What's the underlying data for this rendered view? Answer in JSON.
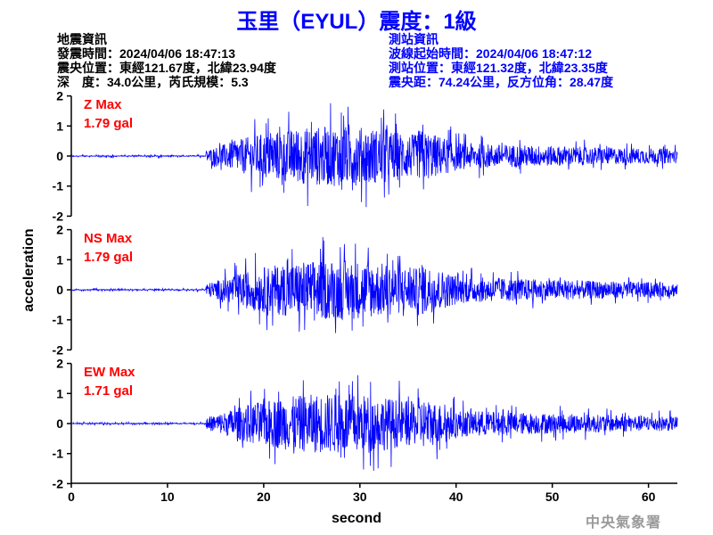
{
  "title": "玉里（EYUL）震度：1級",
  "earthquake_info": {
    "heading": "地震資訊",
    "origin_time": "發震時間：2024/04/06 18:47:13",
    "epicenter": "震央位置：東經121.67度，北緯23.94度",
    "depth_magnitude": "深　度：34.0公里，芮氏規模：5.3"
  },
  "station_info": {
    "heading": "測站資訊",
    "start_time": "波線起始時間：2024/04/06 18:47:12",
    "location": "測站位置：東經121.32度，北緯23.35度",
    "distance": "震央距：74.24公里，反方位角：28.47度"
  },
  "agency": "中央氣象署",
  "colors": {
    "trace": "#0000ff",
    "max_label": "#ff0000",
    "title": "#0000ff",
    "station_info": "#0000ff",
    "agency": "#9a9a9a"
  },
  "chart_data": {
    "type": "line",
    "xlabel": "second",
    "ylabel": "acceleration",
    "xlim": [
      0,
      63
    ],
    "ylim": [
      -2,
      2
    ],
    "x_ticks": [
      "0",
      "10",
      "20",
      "30",
      "40",
      "50",
      "60"
    ],
    "y_ticks": [
      "2",
      "1",
      "0",
      "-1",
      "-2"
    ],
    "grid": false,
    "p_arrival_s": 14,
    "panels": [
      {
        "component": "Z",
        "label": "Z Max",
        "max_text": "1.79 gal",
        "max": 1.79
      },
      {
        "component": "NS",
        "label": "NS Max",
        "max_text": "1.79 gal",
        "max": 1.79
      },
      {
        "component": "EW",
        "label": "EW Max",
        "max_text": "1.71 gal",
        "max": 1.71
      }
    ]
  }
}
